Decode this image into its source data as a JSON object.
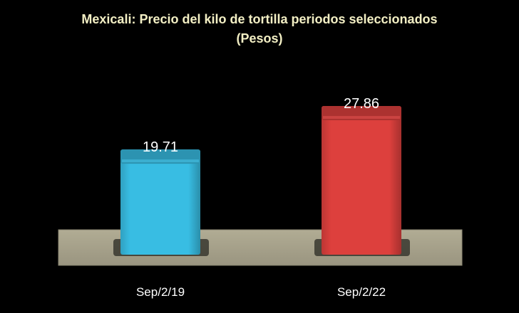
{
  "chart_data": {
    "type": "bar",
    "title": "Mexicali: Precio del kilo de tortilla periodos seleccionados",
    "subtitle": "(Pesos)",
    "categories": [
      "Sep/2/19",
      "Sep/2/22"
    ],
    "values": [
      19.71,
      27.86
    ],
    "value_labels": [
      "19.71",
      "27.86"
    ],
    "ylim": [
      0,
      32
    ],
    "grid": false,
    "legend": "none",
    "colors": {
      "bars": [
        "#38bde3",
        "#dd403d"
      ],
      "floor": "#a7a28a",
      "background": "#000000",
      "title": "#f3efc4",
      "labels": "#ffffff"
    }
  }
}
